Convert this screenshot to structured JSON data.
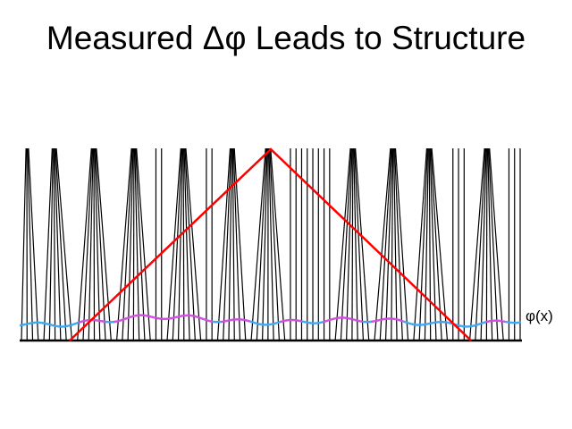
{
  "slide": {
    "title": "Measured Δφ Leads to Structure",
    "phase_label": "φ(x)"
  },
  "colors": {
    "lines": "#000000",
    "triangle": "#ff0000",
    "phase_high": "#d050e0",
    "phase_low": "#40a8f0"
  }
}
